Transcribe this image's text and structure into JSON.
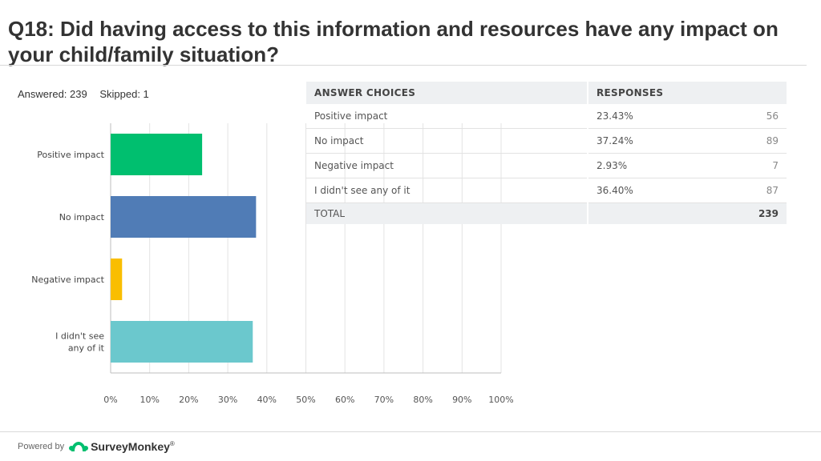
{
  "page": {
    "title": "Q18: Did having access to this information and resources have any impact on your child/family situation?",
    "answered": "Answered: 239",
    "skipped": "Skipped: 1"
  },
  "chart_data": {
    "type": "bar",
    "orientation": "horizontal",
    "categories": [
      [
        "Positive impact"
      ],
      [
        "No impact"
      ],
      [
        "Negative impact"
      ],
      [
        "I didn't see",
        "any of it"
      ]
    ],
    "values": [
      23.43,
      37.24,
      2.93,
      36.4
    ],
    "colors": [
      "#00bf6f",
      "#507cb6",
      "#f9be00",
      "#6bc8cd"
    ],
    "xticks": [
      "0%",
      "10%",
      "20%",
      "30%",
      "40%",
      "50%",
      "60%",
      "70%",
      "80%",
      "90%",
      "100%"
    ],
    "xlim": [
      0,
      100
    ],
    "grid": true
  },
  "table": {
    "headers": [
      "ANSWER CHOICES",
      "RESPONSES"
    ],
    "rows": [
      {
        "choice": "Positive impact",
        "percent": "23.43%",
        "count": "56"
      },
      {
        "choice": "No impact",
        "percent": "37.24%",
        "count": "89"
      },
      {
        "choice": "Negative impact",
        "percent": "2.93%",
        "count": "7"
      },
      {
        "choice": "I didn't see any of it",
        "percent": "36.40%",
        "count": "87"
      }
    ],
    "total_label": "TOTAL",
    "total_value": "239"
  },
  "footer": {
    "powered_by": "Powered by",
    "brand": "SurveyMonkey",
    "brand_mark": "®",
    "brand_color": "#00bf6f"
  }
}
